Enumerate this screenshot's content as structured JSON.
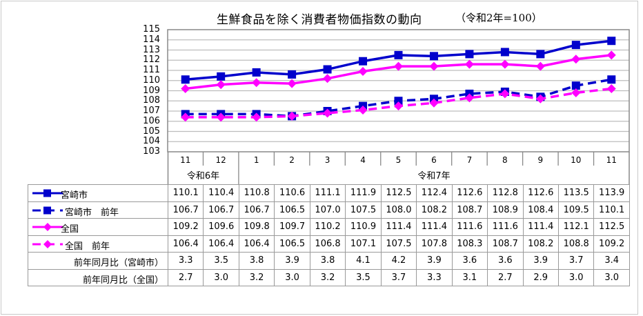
{
  "title": "生鮮食品を除く消費者物価指数の動向",
  "subtitle": "（令和2年=100）",
  "chart_data": {
    "type": "line",
    "title": "生鮮食品を除く消費者物価指数の動向",
    "subtitle": "（令和2年=100）",
    "xlabel": "",
    "ylabel": "",
    "ylim": [
      103,
      115
    ],
    "yticks": [
      115,
      114,
      113,
      112,
      111,
      110,
      109,
      108,
      107,
      106,
      105,
      104,
      103
    ],
    "grid": true,
    "categories": [
      "11",
      "12",
      "1",
      "2",
      "3",
      "4",
      "5",
      "6",
      "7",
      "8",
      "9",
      "10",
      "11"
    ],
    "eras": [
      {
        "label": "令和6年",
        "span": [
          0,
          1
        ]
      },
      {
        "label": "令和7年",
        "span": [
          2,
          12
        ]
      }
    ],
    "legend_position": "table-left",
    "series": [
      {
        "name": "宮崎市",
        "color": "#0000CC",
        "style": "solid",
        "marker": "square",
        "values": [
          110.1,
          110.4,
          110.8,
          110.6,
          111.1,
          111.9,
          112.5,
          112.4,
          112.6,
          112.8,
          112.6,
          113.5,
          113.9
        ]
      },
      {
        "name": "宮崎市　前年",
        "color": "#0000CC",
        "style": "dashed",
        "marker": "square",
        "values": [
          106.7,
          106.7,
          106.7,
          106.5,
          107.0,
          107.5,
          108.0,
          108.2,
          108.7,
          108.9,
          108.4,
          109.5,
          110.1
        ]
      },
      {
        "name": "全国",
        "color": "#FF00FF",
        "style": "solid",
        "marker": "diamond",
        "values": [
          109.2,
          109.6,
          109.8,
          109.7,
          110.2,
          110.9,
          111.4,
          111.4,
          111.6,
          111.6,
          111.4,
          112.1,
          112.5
        ]
      },
      {
        "name": "全国　前年",
        "color": "#FF00FF",
        "style": "dashed",
        "marker": "diamond",
        "values": [
          106.4,
          106.4,
          106.4,
          106.5,
          106.8,
          107.1,
          107.5,
          107.8,
          108.3,
          108.7,
          108.2,
          108.8,
          109.2
        ]
      }
    ],
    "extra_rows": [
      {
        "name": "前年同月比（宮崎市）",
        "values": [
          3.3,
          3.5,
          3.8,
          3.9,
          3.8,
          4.1,
          4.2,
          3.9,
          3.6,
          3.6,
          3.9,
          3.7,
          3.4
        ]
      },
      {
        "name": "前年同月比（全国）",
        "values": [
          2.7,
          3.0,
          3.2,
          3.0,
          3.2,
          3.5,
          3.7,
          3.3,
          3.1,
          2.7,
          2.9,
          3.0,
          3.0
        ]
      }
    ]
  },
  "table": {
    "rows": [
      {
        "label": "宮崎市",
        "cells": [
          "110.1",
          "110.4",
          "110.8",
          "110.6",
          "111.1",
          "111.9",
          "112.5",
          "112.4",
          "112.6",
          "112.8",
          "112.6",
          "113.5",
          "113.9"
        ]
      },
      {
        "label": "宮崎市　前年",
        "cells": [
          "106.7",
          "106.7",
          "106.7",
          "106.5",
          "107.0",
          "107.5",
          "108.0",
          "108.2",
          "108.7",
          "108.9",
          "108.4",
          "109.5",
          "110.1"
        ]
      },
      {
        "label": "全国",
        "cells": [
          "109.2",
          "109.6",
          "109.8",
          "109.7",
          "110.2",
          "110.9",
          "111.4",
          "111.4",
          "111.6",
          "111.6",
          "111.4",
          "112.1",
          "112.5"
        ]
      },
      {
        "label": "全国　前年",
        "cells": [
          "106.4",
          "106.4",
          "106.4",
          "106.5",
          "106.8",
          "107.1",
          "107.5",
          "107.8",
          "108.3",
          "108.7",
          "108.2",
          "108.8",
          "109.2"
        ]
      },
      {
        "label": "前年同月比（宮崎市）",
        "cells": [
          "3.3",
          "3.5",
          "3.8",
          "3.9",
          "3.8",
          "4.1",
          "4.2",
          "3.9",
          "3.6",
          "3.6",
          "3.9",
          "3.7",
          "3.4"
        ]
      },
      {
        "label": "前年同月比（全国）",
        "cells": [
          "2.7",
          "3.0",
          "3.2",
          "3.0",
          "3.2",
          "3.5",
          "3.7",
          "3.3",
          "3.1",
          "2.7",
          "2.9",
          "3.0",
          "3.0"
        ]
      }
    ]
  }
}
